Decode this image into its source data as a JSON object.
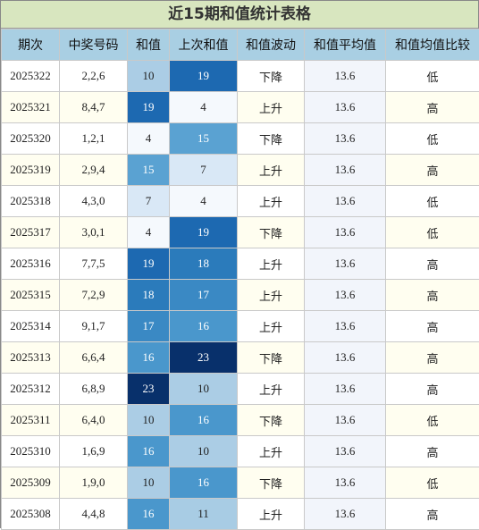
{
  "title": "近15期和值统计表格",
  "headers": [
    "期次",
    "中奖号码",
    "和值",
    "上次和值",
    "和值波动",
    "和值平均值",
    "和值均值比较"
  ],
  "rows": [
    {
      "issue": "2025322",
      "numbers": "2,2,6",
      "sum": "10",
      "prev_sum": "19",
      "trend": "下降",
      "avg": "13.6",
      "compare": "低"
    },
    {
      "issue": "2025321",
      "numbers": "8,4,7",
      "sum": "19",
      "prev_sum": "4",
      "trend": "上升",
      "avg": "13.6",
      "compare": "高"
    },
    {
      "issue": "2025320",
      "numbers": "1,2,1",
      "sum": "4",
      "prev_sum": "15",
      "trend": "下降",
      "avg": "13.6",
      "compare": "低"
    },
    {
      "issue": "2025319",
      "numbers": "2,9,4",
      "sum": "15",
      "prev_sum": "7",
      "trend": "上升",
      "avg": "13.6",
      "compare": "高"
    },
    {
      "issue": "2025318",
      "numbers": "4,3,0",
      "sum": "7",
      "prev_sum": "4",
      "trend": "上升",
      "avg": "13.6",
      "compare": "低"
    },
    {
      "issue": "2025317",
      "numbers": "3,0,1",
      "sum": "4",
      "prev_sum": "19",
      "trend": "下降",
      "avg": "13.6",
      "compare": "低"
    },
    {
      "issue": "2025316",
      "numbers": "7,7,5",
      "sum": "19",
      "prev_sum": "18",
      "trend": "上升",
      "avg": "13.6",
      "compare": "高"
    },
    {
      "issue": "2025315",
      "numbers": "7,2,9",
      "sum": "18",
      "prev_sum": "17",
      "trend": "上升",
      "avg": "13.6",
      "compare": "高"
    },
    {
      "issue": "2025314",
      "numbers": "9,1,7",
      "sum": "17",
      "prev_sum": "16",
      "trend": "上升",
      "avg": "13.6",
      "compare": "高"
    },
    {
      "issue": "2025313",
      "numbers": "6,6,4",
      "sum": "16",
      "prev_sum": "23",
      "trend": "下降",
      "avg": "13.6",
      "compare": "高"
    },
    {
      "issue": "2025312",
      "numbers": "6,8,9",
      "sum": "23",
      "prev_sum": "10",
      "trend": "上升",
      "avg": "13.6",
      "compare": "高"
    },
    {
      "issue": "2025311",
      "numbers": "6,4,0",
      "sum": "10",
      "prev_sum": "16",
      "trend": "下降",
      "avg": "13.6",
      "compare": "低"
    },
    {
      "issue": "2025310",
      "numbers": "1,6,9",
      "sum": "16",
      "prev_sum": "10",
      "trend": "上升",
      "avg": "13.6",
      "compare": "高"
    },
    {
      "issue": "2025309",
      "numbers": "1,9,0",
      "sum": "10",
      "prev_sum": "16",
      "trend": "下降",
      "avg": "13.6",
      "compare": "低"
    },
    {
      "issue": "2025308",
      "numbers": "4,4,8",
      "sum": "16",
      "prev_sum": "11",
      "trend": "上升",
      "avg": "13.6",
      "compare": "高"
    }
  ],
  "heat_colors": {
    "4": "#f5f9fd",
    "7": "#d9e8f6",
    "10": "#abcde5",
    "11": "#a8cce4",
    "15": "#5aa2d2",
    "16": "#4a97cc",
    "17": "#3a89c4",
    "18": "#2b7bbb",
    "19": "#1d69b1",
    "23": "#08306b"
  }
}
